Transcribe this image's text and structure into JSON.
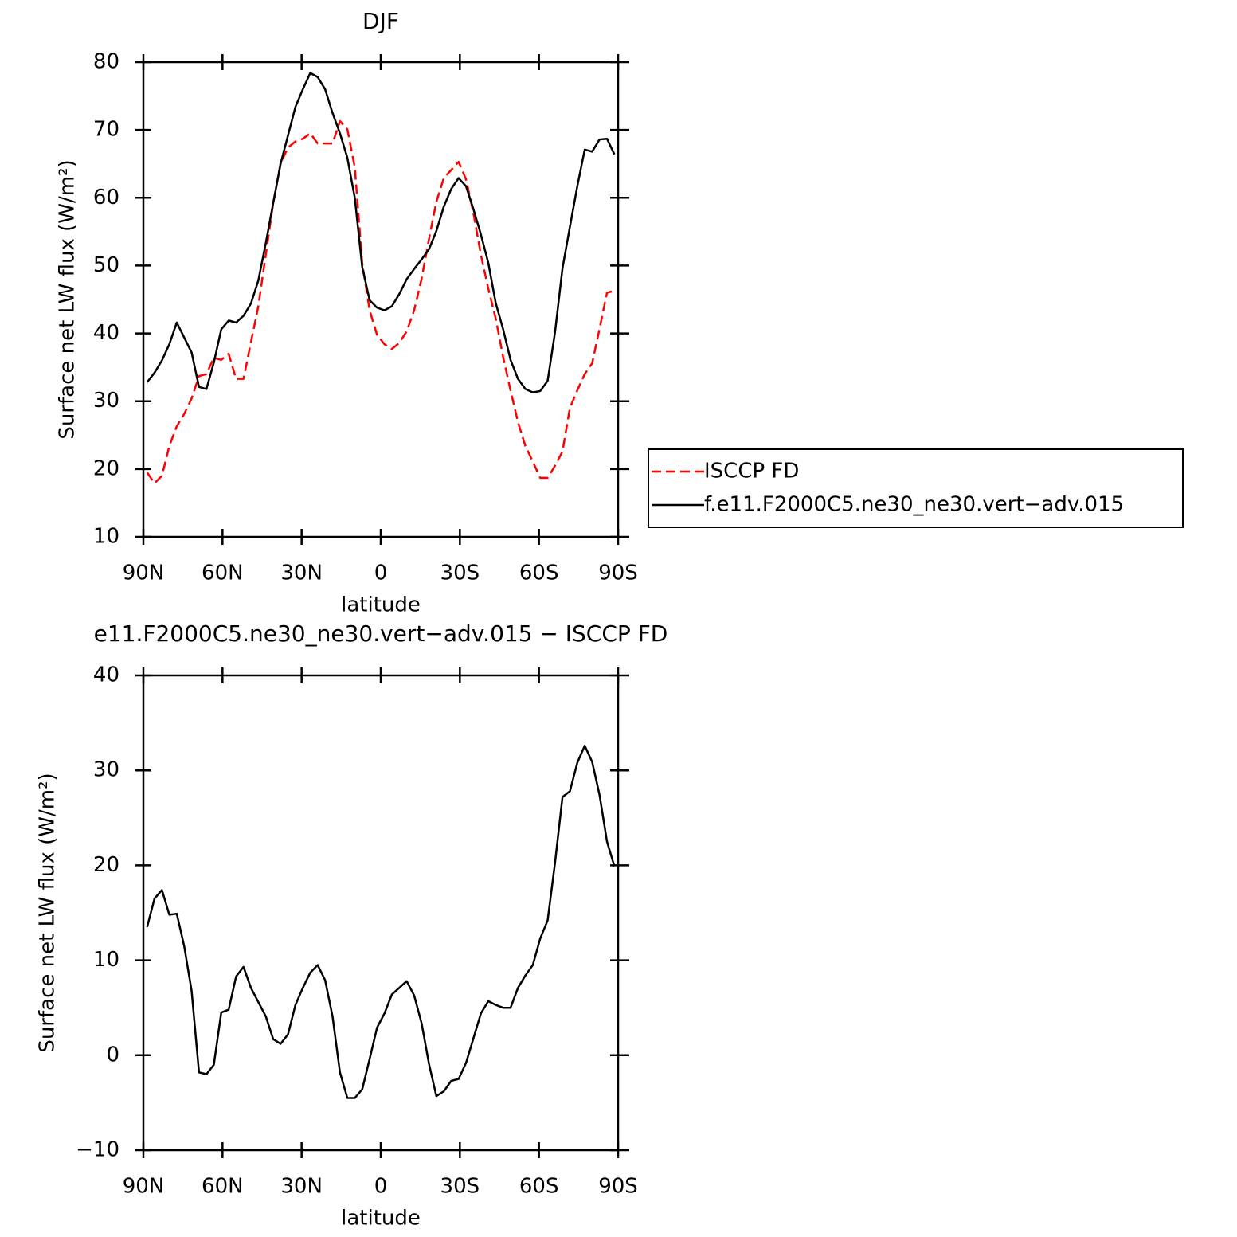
{
  "chart_data": [
    {
      "type": "line",
      "title": "DJF",
      "xlabel": "latitude",
      "ylabel": "Surface net LW flux (W/m²)",
      "x": [
        88.59,
        85.78,
        82.97,
        80.16,
        77.34,
        74.53,
        71.72,
        68.91,
        66.09,
        63.28,
        60.47,
        57.66,
        54.84,
        52.03,
        49.22,
        46.41,
        43.59,
        40.78,
        37.97,
        35.16,
        32.34,
        29.53,
        26.72,
        23.91,
        21.09,
        18.28,
        15.47,
        12.66,
        9.84,
        7.03,
        4.22,
        1.41,
        -1.41,
        -4.22,
        -7.03,
        -9.84,
        -12.66,
        -15.47,
        -18.28,
        -21.09,
        -23.91,
        -26.72,
        -29.53,
        -32.34,
        -35.16,
        -37.97,
        -40.78,
        -43.59,
        -46.41,
        -49.22,
        -52.03,
        -54.84,
        -57.66,
        -60.47,
        -63.28,
        -66.09,
        -68.91,
        -71.72,
        -74.53,
        -77.34,
        -80.16,
        -82.97,
        -85.78,
        -88.59
      ],
      "xlim": [
        90,
        -90
      ],
      "xticks": [
        {
          "value": 90,
          "label": "90N"
        },
        {
          "value": 60,
          "label": "60N"
        },
        {
          "value": 30,
          "label": "30N"
        },
        0,
        {
          "value": -30,
          "label": "30S"
        },
        {
          "value": -60,
          "label": "60S"
        },
        {
          "value": -90,
          "label": "90S"
        }
      ],
      "ylim": [
        10,
        80
      ],
      "yticks": [
        10,
        20,
        30,
        40,
        50,
        60,
        70,
        80
      ],
      "legend": "outside right",
      "series": [
        {
          "name": "ISCCP FD",
          "color": "#ff0000",
          "line_style": "dashed",
          "values": [
            19.5,
            17.9,
            19,
            23.4,
            26.3,
            28.1,
            30.4,
            33.7,
            34,
            36.4,
            36.1,
            37,
            33.3,
            33.3,
            38.7,
            44,
            51.6,
            59.2,
            65.1,
            67.4,
            68.3,
            68.7,
            69.5,
            68,
            68,
            68,
            71.3,
            70.1,
            64.5,
            50.4,
            43.4,
            39.8,
            38.4,
            37.7,
            38.6,
            40.3,
            43.4,
            48,
            53.9,
            59.4,
            62.9,
            64.1,
            65.3,
            62.7,
            57.7,
            51.6,
            46.6,
            42.2,
            36.5,
            31.6,
            26.9,
            23.4,
            21.1,
            18.7,
            18.7,
            20.5,
            22.6,
            29,
            31.6,
            34,
            35.6,
            40.7,
            46,
            46.3
          ]
        },
        {
          "name": "f.e11.F2000C5.ne30_ne30.vert−adv.015",
          "color": "#000000",
          "line_style": "solid",
          "values": [
            32.8,
            34.2,
            36,
            38.4,
            41.6,
            39.4,
            37.2,
            32.1,
            31.8,
            35.7,
            40.6,
            41.9,
            41.6,
            42.6,
            44.4,
            47.8,
            53.3,
            59.2,
            65,
            69.2,
            73.4,
            76,
            78.4,
            77.8,
            76,
            72.5,
            69.5,
            65.9,
            60,
            49.8,
            44.9,
            43.8,
            43.4,
            44,
            45.8,
            48,
            49.5,
            50.9,
            52.4,
            55.1,
            58.7,
            61.3,
            62.9,
            61.7,
            58.3,
            54.6,
            50.4,
            44.5,
            40.6,
            36.1,
            33.3,
            31.8,
            31.3,
            31.5,
            33,
            40.2,
            49.6,
            55.7,
            61.7,
            67.1,
            66.8,
            68.6,
            68.7,
            66.4
          ]
        }
      ]
    },
    {
      "type": "line",
      "title": "e11.F2000C5.ne30_ne30.vert−adv.015 − ISCCP FD",
      "xlabel": "latitude",
      "ylabel": "Surface net LW flux (W/m²)",
      "x": [
        88.59,
        85.78,
        82.97,
        80.16,
        77.34,
        74.53,
        71.72,
        68.91,
        66.09,
        63.28,
        60.47,
        57.66,
        54.84,
        52.03,
        49.22,
        46.41,
        43.59,
        40.78,
        37.97,
        35.16,
        32.34,
        29.53,
        26.72,
        23.91,
        21.09,
        18.28,
        15.47,
        12.66,
        9.84,
        7.03,
        4.22,
        1.41,
        -1.41,
        -4.22,
        -7.03,
        -9.84,
        -12.66,
        -15.47,
        -18.28,
        -21.09,
        -23.91,
        -26.72,
        -29.53,
        -32.34,
        -35.16,
        -37.97,
        -40.78,
        -43.59,
        -46.41,
        -49.22,
        -52.03,
        -54.84,
        -57.66,
        -60.47,
        -63.28,
        -66.09,
        -68.91,
        -71.72,
        -74.53,
        -77.34,
        -80.16,
        -82.97,
        -85.78,
        -88.59
      ],
      "xlim": [
        90,
        -90
      ],
      "xticks": [
        {
          "value": 90,
          "label": "90N"
        },
        {
          "value": 60,
          "label": "60N"
        },
        {
          "value": 30,
          "label": "30N"
        },
        0,
        {
          "value": -30,
          "label": "30S"
        },
        {
          "value": -60,
          "label": "60S"
        },
        {
          "value": -90,
          "label": "90S"
        }
      ],
      "ylim": [
        -10,
        40
      ],
      "yticks": [
        {
          "value": -10,
          "label": "−10"
        },
        0,
        10,
        20,
        30,
        40
      ],
      "series": [
        {
          "color": "#000000",
          "line_style": "solid",
          "values": [
            13.5,
            16.5,
            17.4,
            14.8,
            14.9,
            11.5,
            6.8,
            -1.8,
            -2,
            -1,
            4.5,
            4.8,
            8.3,
            9.3,
            7.1,
            5.6,
            4.1,
            1.7,
            1.2,
            2.2,
            5.3,
            7.1,
            8.7,
            9.5,
            7.9,
            4.1,
            -1.8,
            -4.5,
            -4.5,
            -3.6,
            -0.4,
            2.9,
            4.4,
            6.4,
            7.1,
            7.8,
            6.3,
            3.4,
            -0.9,
            -4.3,
            -3.8,
            -2.7,
            -2.5,
            -0.8,
            1.8,
            4.4,
            5.7,
            5.3,
            5,
            5,
            7.1,
            8.4,
            9.5,
            12.3,
            14.2,
            20.3,
            27.2,
            27.8,
            30.8,
            32.6,
            30.9,
            27.4,
            22.5,
            19.9
          ]
        }
      ]
    }
  ]
}
